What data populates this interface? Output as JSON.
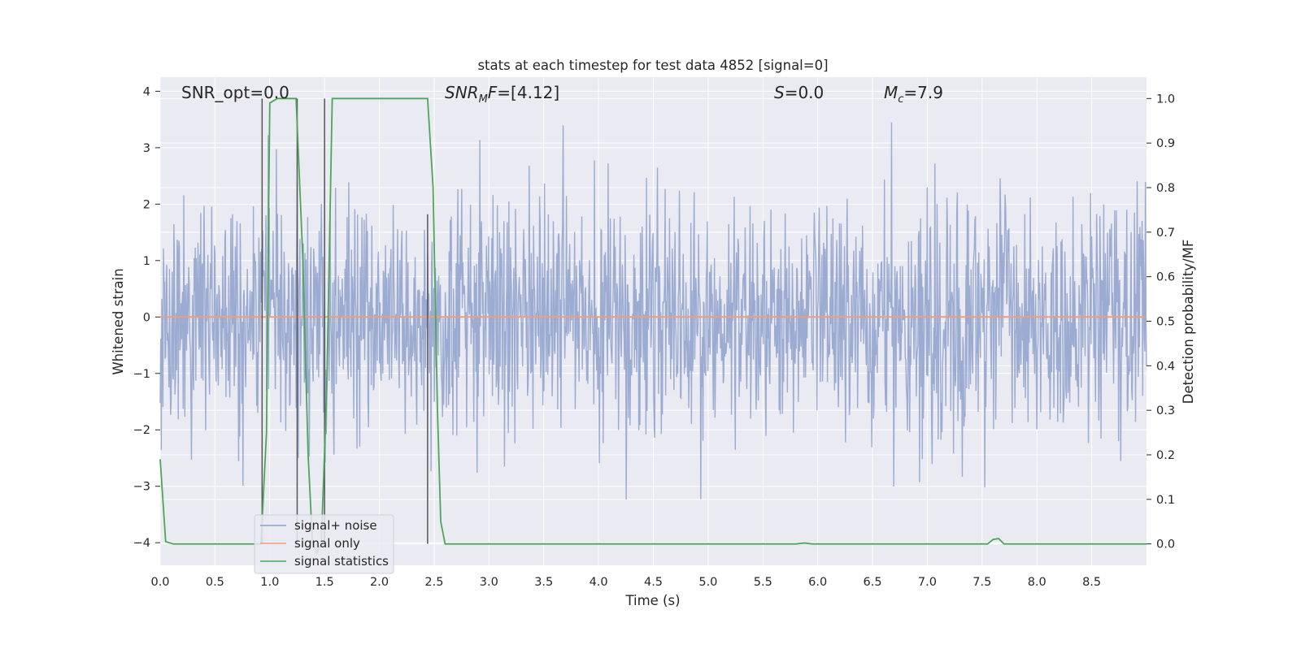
{
  "chart_data": {
    "type": "line",
    "title": "stats at each timestep for test data 4852 [signal=0]",
    "xlabel": "Time (s)",
    "ylabel": "Whitened strain",
    "y2label": "Detection probability/MF",
    "xlim": [
      0.0,
      9.0
    ],
    "ylim": [
      -4.4,
      4.25
    ],
    "y2lim": [
      -0.048,
      1.048
    ],
    "x_ticks": [
      "0.0",
      "0.5",
      "1.0",
      "1.5",
      "2.0",
      "2.5",
      "3.0",
      "3.5",
      "4.0",
      "4.5",
      "5.0",
      "5.5",
      "6.0",
      "6.5",
      "7.0",
      "7.5",
      "8.0",
      "8.5"
    ],
    "y_ticks": [
      "4",
      "3",
      "2",
      "1",
      "0",
      "−1",
      "−2",
      "−3",
      "−4"
    ],
    "y2_ticks": [
      "1.0",
      "0.9",
      "0.8",
      "0.7",
      "0.6",
      "0.5",
      "0.4",
      "0.3",
      "0.2",
      "0.1",
      "0.0"
    ],
    "grid": true,
    "legend_position": "lower-left",
    "annotations": {
      "snr_opt": "SNR_opt=0.0",
      "snr_mf_italic": "SNR",
      "snr_mf_sub": "M",
      "snr_mf_rest_italic": "F",
      "snr_mf_value": "=[4.12]",
      "s_italic": "S",
      "s_value": "=0.0",
      "mc_italic": "M",
      "mc_sub": "c",
      "mc_value": "=7.9"
    },
    "series": [
      {
        "name": "signal+ noise",
        "color": "#8da0cb",
        "axis": "left",
        "description": "whitened strain noise, roughly symmetric around 0, peaks about ±3.5",
        "envelope": {
          "x_range": [
            0.0,
            9.0
          ],
          "typical_peak": 2.4,
          "max_peak": 3.9,
          "min_peak": -3.85
        }
      },
      {
        "name": "signal only",
        "color": "#e8a083",
        "axis": "left",
        "x": [
          0.0,
          9.0
        ],
        "values": [
          0.0,
          0.0
        ]
      },
      {
        "name": "signal statistics",
        "color": "#4ea55a",
        "axis": "right",
        "x": [
          0.0,
          0.05,
          0.12,
          0.2,
          0.92,
          0.97,
          1.0,
          1.07,
          1.24,
          1.3,
          1.35,
          1.39,
          1.43,
          1.47,
          1.52,
          1.57,
          2.44,
          2.49,
          2.53,
          2.56,
          2.6,
          5.8,
          5.88,
          5.95,
          7.55,
          7.6,
          7.65,
          7.7,
          9.0
        ],
        "values": [
          0.19,
          0.005,
          0.0,
          0.0,
          0.0,
          0.25,
          0.99,
          1.0,
          1.0,
          0.65,
          0.2,
          0.0,
          -0.02,
          0.0,
          0.35,
          1.0,
          1.0,
          0.8,
          0.3,
          0.05,
          0.0,
          0.0,
          0.002,
          0.0,
          0.0,
          0.01,
          0.012,
          0.0,
          0.0
        ]
      }
    ],
    "vertical_markers": {
      "color": "#555555",
      "lines": [
        {
          "x": 0.93,
          "y2_top": 1.0,
          "y2_bottom": 0.0
        },
        {
          "x": 1.25,
          "y2_top": 1.0,
          "y2_bottom": 0.0
        },
        {
          "x": 1.5,
          "y2_top": 1.0,
          "y2_bottom": 0.0
        },
        {
          "x": 2.44,
          "y2_top": 0.74,
          "y2_bottom": 0.0
        }
      ]
    },
    "legend": {
      "entries": [
        {
          "label": "signal+ noise",
          "color": "#8da0cb"
        },
        {
          "label": "signal only",
          "color": "#e8a083"
        },
        {
          "label": "signal statistics",
          "color": "#4ea55a"
        }
      ]
    }
  }
}
